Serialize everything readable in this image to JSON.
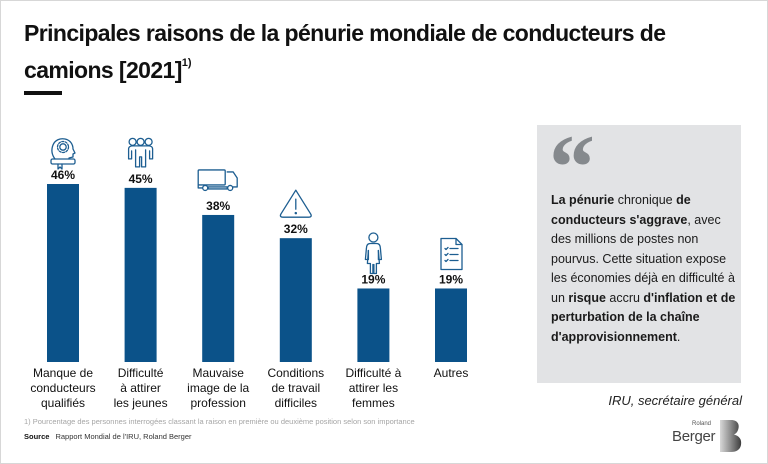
{
  "header": {
    "title": "Principales raisons de la pénurie mondiale de conducteurs de camions [2021]",
    "title_footnote_marker": "1)"
  },
  "chart_data": {
    "type": "bar",
    "title": "Principales raisons de la pénurie mondiale de conducteurs de camions [2021]",
    "xlabel": "",
    "ylabel": "",
    "ylim": [
      0,
      50
    ],
    "grid": false,
    "unit": "%",
    "bar_color": "#0b5289",
    "categories": [
      [
        "Manque de",
        "conducteurs",
        "qualifiés"
      ],
      [
        "Difficulté",
        "à attirer",
        "les jeunes"
      ],
      [
        "Mauvaise",
        "image de la",
        "profession"
      ],
      [
        "Conditions",
        "de travail",
        "difficiles"
      ],
      [
        "Difficulté à",
        "attirer les",
        "femmes"
      ],
      [
        "Autres"
      ]
    ],
    "icons": [
      "head-gear-certificate-icon",
      "group-of-people-icon",
      "truck-icon",
      "warning-triangle-icon",
      "woman-icon",
      "checklist-document-icon"
    ],
    "values": [
      46,
      45,
      38,
      32,
      19,
      19
    ],
    "value_labels": [
      "46%",
      "45%",
      "38%",
      "32%",
      "19%",
      "19%"
    ]
  },
  "quote": {
    "mark": "“",
    "segments": [
      {
        "text": "La pénurie",
        "bold": true
      },
      {
        "text": " chronique ",
        "bold": false
      },
      {
        "text": "de conducteurs s'aggrave",
        "bold": true
      },
      {
        "text": ", avec des millions de postes non pourvus. Cette situation expose les économies déjà en difficulté à un ",
        "bold": false
      },
      {
        "text": "risque",
        "bold": true
      },
      {
        "text": " accru ",
        "bold": false
      },
      {
        "text": "d'inflation et de perturbation de la chaîne d'approvisionnement",
        "bold": true
      },
      {
        "text": ".",
        "bold": false
      }
    ],
    "author": "IRU, secrétaire général"
  },
  "footer": {
    "footnote": "1) Pourcentage des personnes interrogées classant la raison en première ou deuxième position selon son importance",
    "source_label": "Source",
    "source_text": "Rapport Mondial de l'IRU, Roland Berger"
  },
  "logo": {
    "small": "Roland",
    "big": "Berger"
  }
}
